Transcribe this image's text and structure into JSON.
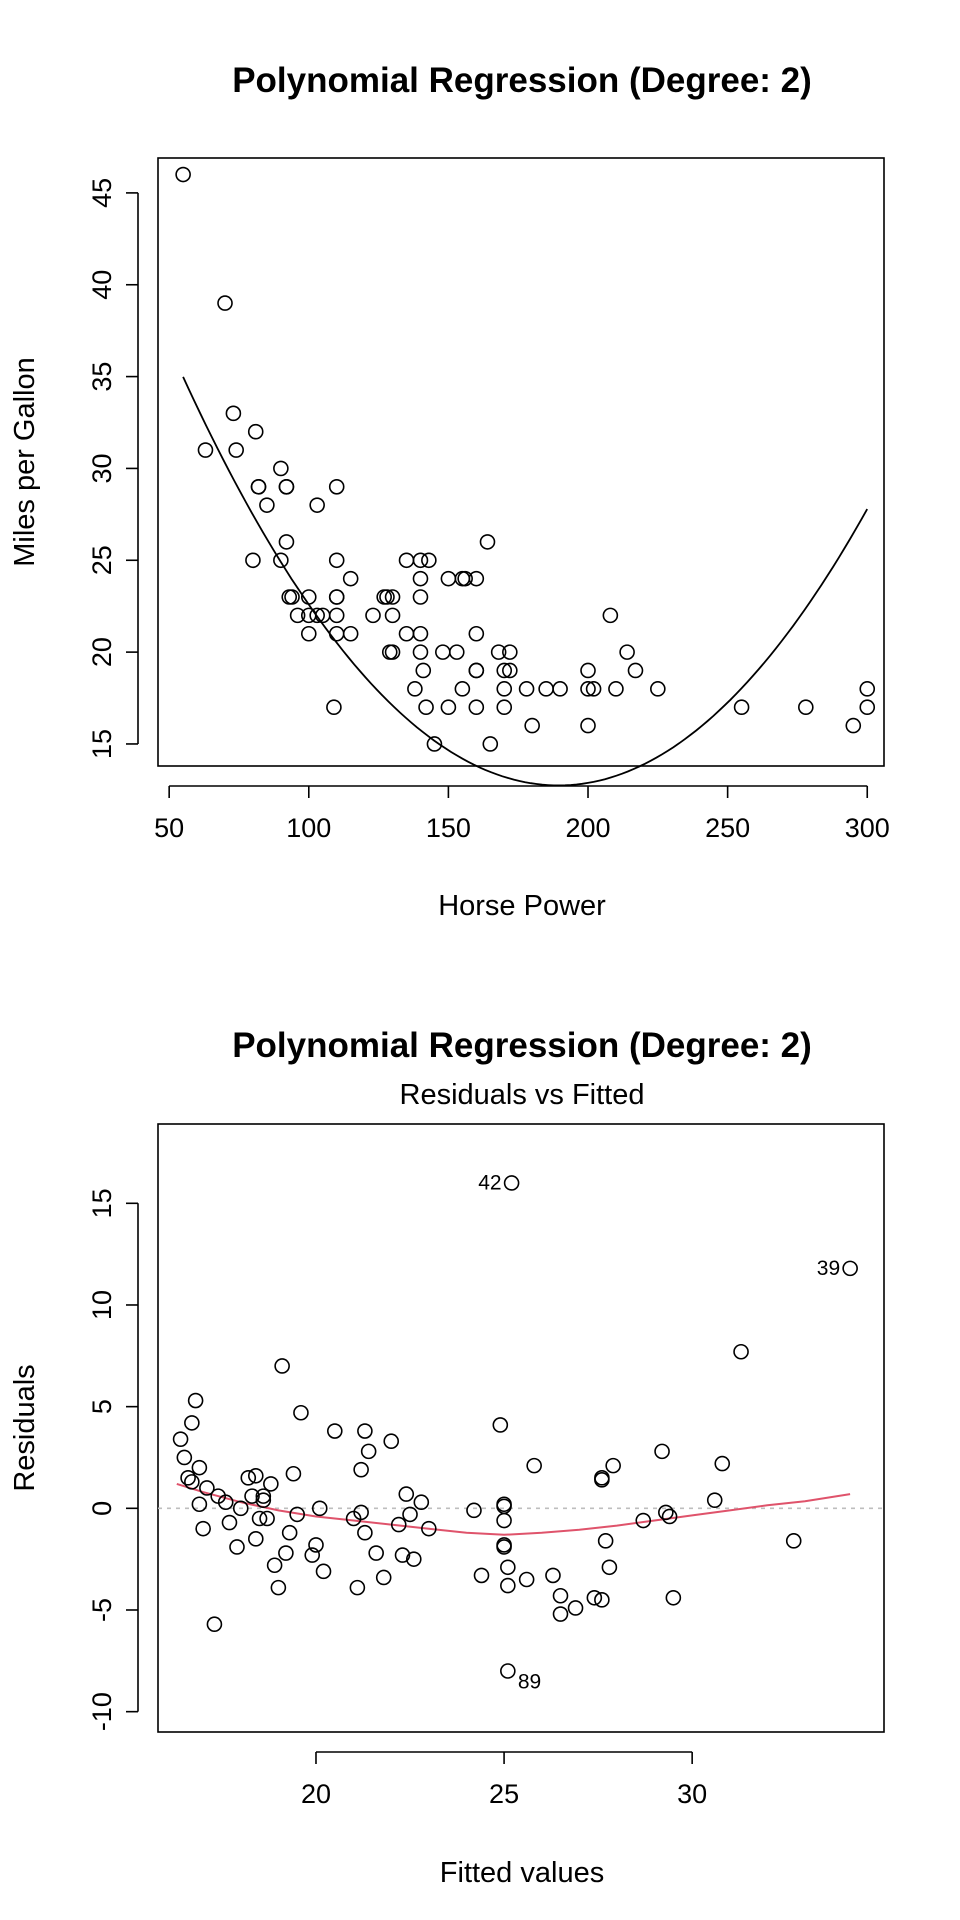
{
  "chart_data": [
    {
      "type": "scatter",
      "title": "Polynomial Regression (Degree: 2)",
      "subtitle": "",
      "xlabel": "Horse Power",
      "ylabel": "Miles per Gallon",
      "xlim": [
        46,
        306
      ],
      "ylim": [
        13.8,
        46.9
      ],
      "xticks": [
        50,
        100,
        150,
        200,
        250,
        300
      ],
      "yticks": [
        15,
        20,
        25,
        30,
        35,
        40,
        45
      ],
      "grid": false,
      "colors": {
        "points": "#000000",
        "fit": "#000000"
      },
      "points": {
        "x": [
          55,
          63,
          70,
          73,
          74,
          80,
          81,
          82,
          82,
          85,
          90,
          90,
          92,
          92,
          92,
          93,
          94,
          96,
          100,
          100,
          100,
          103,
          103,
          105,
          109,
          110,
          110,
          110,
          110,
          110,
          110,
          115,
          115,
          123,
          127,
          128,
          129,
          130,
          130,
          130,
          135,
          135,
          138,
          140,
          140,
          140,
          140,
          140,
          141,
          142,
          143,
          145,
          148,
          150,
          150,
          153,
          155,
          155,
          156,
          160,
          160,
          160,
          160,
          160,
          164,
          165,
          168,
          170,
          170,
          170,
          172,
          172,
          178,
          180,
          185,
          190,
          200,
          200,
          200,
          202,
          208,
          210,
          214,
          217,
          225,
          255,
          278,
          295,
          300,
          300
        ],
        "y": [
          46,
          31,
          39,
          33,
          31,
          25,
          32,
          29,
          29,
          28,
          30,
          25,
          29,
          29,
          26,
          23,
          23,
          22,
          23,
          22,
          21,
          22,
          28,
          22,
          17,
          29,
          25,
          23,
          23,
          22,
          21,
          24,
          21,
          22,
          23,
          23,
          20,
          23,
          22,
          20,
          25,
          21,
          18,
          25,
          24,
          23,
          21,
          20,
          19,
          17,
          25,
          15,
          20,
          24,
          17,
          20,
          24,
          18,
          24,
          21,
          19,
          19,
          17,
          24,
          26,
          15,
          20,
          19,
          18,
          17,
          20,
          19,
          18,
          16,
          18,
          18,
          19,
          18,
          16,
          18,
          22,
          18,
          20,
          19,
          18,
          17,
          17,
          16,
          18,
          17
        ]
      },
      "fit_curve": {
        "coefficients": [
          56.9,
          -0.4662,
          0.0012305
        ],
        "x_range": [
          55,
          300
        ]
      }
    },
    {
      "type": "scatter",
      "title": "Polynomial Regression (Degree: 2)",
      "subtitle": "Residuals vs Fitted",
      "xlabel": "Fitted values",
      "ylabel": "Residuals",
      "xlim": [
        15.8,
        35.1
      ],
      "ylim": [
        -11.0,
        18.9
      ],
      "xticks": [
        20,
        25,
        30
      ],
      "yticks": [
        -10,
        -5,
        0,
        5,
        10,
        15
      ],
      "grid": false,
      "colors": {
        "points": "#000000",
        "smooth": "#DF536B",
        "zero_line": "#BEBEBE"
      },
      "points": {
        "x": [
          16.6,
          16.8,
          16.5,
          16.4,
          16.7,
          16.9,
          17.0,
          17.1,
          16.9,
          17.4,
          17.6,
          17.7,
          17.9,
          18.0,
          18.2,
          18.3,
          18.4,
          18.5,
          18.6,
          18.7,
          18.8,
          18.9,
          19.0,
          19.1,
          19.2,
          19.3,
          19.4,
          19.5,
          19.6,
          19.9,
          20.0,
          20.1,
          20.2,
          20.5,
          21.0,
          21.1,
          21.2,
          21.2,
          21.3,
          21.3,
          21.4,
          21.6,
          21.8,
          22.0,
          22.2,
          22.3,
          22.4,
          22.5,
          22.6,
          22.8,
          23.0,
          24.2,
          24.4,
          24.9,
          25.0,
          25.0,
          25.0,
          25.0,
          25.1,
          25.1,
          25.1,
          25.2,
          25.6,
          25.8,
          26.3,
          26.5,
          26.5,
          26.9,
          27.4,
          27.6,
          27.6,
          27.6,
          27.7,
          27.8,
          27.9,
          28.7,
          29.2,
          29.3,
          29.4,
          29.5,
          30.6,
          30.8,
          31.3,
          32.7,
          34.2,
          16.7,
          17.3,
          18.6,
          18.4,
          25.0
        ],
        "y": [
          1.5,
          5.3,
          2.5,
          3.4,
          1.3,
          2.0,
          -1.0,
          1.0,
          0.2,
          0.6,
          0.3,
          -0.7,
          -1.9,
          0.0,
          1.5,
          0.6,
          -1.5,
          -0.5,
          0.4,
          -0.5,
          1.2,
          -2.8,
          -3.9,
          7.0,
          -2.2,
          -1.2,
          1.7,
          -0.3,
          4.7,
          -2.3,
          -1.8,
          0.0,
          -3.1,
          3.8,
          -0.5,
          -3.9,
          1.9,
          -0.2,
          3.8,
          -1.2,
          2.8,
          -2.2,
          -3.4,
          3.3,
          -0.8,
          -2.3,
          0.7,
          -0.3,
          -2.5,
          0.3,
          -1.0,
          -0.1,
          -3.3,
          4.1,
          0.1,
          0.2,
          -1.8,
          -1.9,
          -2.9,
          -3.8,
          -8.0,
          16.0,
          -3.5,
          2.1,
          -3.3,
          -4.3,
          -5.2,
          -4.9,
          -4.4,
          -4.5,
          1.4,
          1.5,
          -1.6,
          -2.9,
          2.1,
          -0.6,
          2.8,
          -0.2,
          -0.4,
          -4.4,
          0.4,
          2.2,
          7.7,
          -1.6,
          11.8,
          4.2,
          -5.7,
          0.6,
          1.6,
          -0.6
        ],
        "labels": [
          {
            "index": 61,
            "text": "42"
          },
          {
            "index": 60,
            "text": "89"
          },
          {
            "index": 84,
            "text": "39"
          }
        ]
      },
      "smooth_curve": {
        "x": [
          16.3,
          17.0,
          18.0,
          19.0,
          20.0,
          21.0,
          22.0,
          23.0,
          24.0,
          25.0,
          26.0,
          27.0,
          28.0,
          29.0,
          30.0,
          31.0,
          32.0,
          33.0,
          34.2
        ],
        "y": [
          1.2,
          0.8,
          0.3,
          -0.1,
          -0.4,
          -0.6,
          -0.8,
          -1.0,
          -1.2,
          -1.3,
          -1.2,
          -1.05,
          -0.85,
          -0.6,
          -0.35,
          -0.1,
          0.15,
          0.35,
          0.7
        ]
      }
    }
  ]
}
